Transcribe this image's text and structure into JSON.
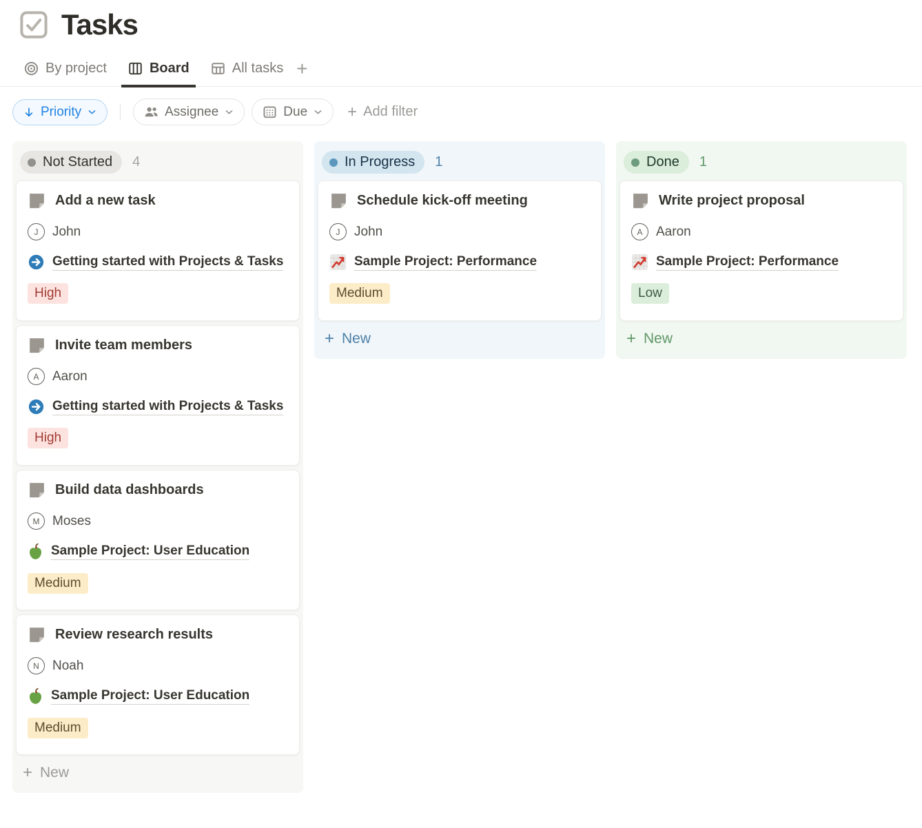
{
  "page": {
    "title": "Tasks",
    "title_icon": "checkbox-icon"
  },
  "tabs": [
    {
      "label": "By project",
      "icon": "target-icon",
      "active": false
    },
    {
      "label": "Board",
      "icon": "board-icon",
      "active": true
    },
    {
      "label": "All tasks",
      "icon": "table-icon",
      "active": false
    }
  ],
  "tabs_add_label": "+",
  "filter_bar": {
    "sort_button": {
      "label": "Priority",
      "icon": "arrow-down-icon",
      "accent": "#2383e2"
    },
    "assignee_button": {
      "label": "Assignee",
      "icon": "people-icon"
    },
    "due_button": {
      "label": "Due",
      "icon": "calendar-icon"
    },
    "add_filter": {
      "label": "Add filter",
      "plus": "+"
    }
  },
  "priority_colors": {
    "High": {
      "bg": "#fde3df",
      "text": "#a23c34"
    },
    "Medium": {
      "bg": "#fdecc8",
      "text": "#5d4c2c"
    },
    "Low": {
      "bg": "#dbeddb",
      "text": "#3e5a47"
    }
  },
  "board": {
    "columns": [
      {
        "id": "not-started",
        "label": "Not Started",
        "count": "4",
        "new_label": "New",
        "theme": {
          "bg": "#f7f7f5",
          "badge_bg": "#e7e6e3",
          "badge_text": "#32302c",
          "dot": "#91918e",
          "count": "#a5a4a1",
          "new": "#9b9a97"
        },
        "cards": [
          {
            "title": "Add a new task",
            "assignee": {
              "initial": "J",
              "name": "John"
            },
            "project": {
              "icon": "arrow-circle-icon",
              "label": "Getting started with Projects & Tasks"
            },
            "priority": "High"
          },
          {
            "title": "Invite team members",
            "assignee": {
              "initial": "A",
              "name": "Aaron"
            },
            "project": {
              "icon": "arrow-circle-icon",
              "label": "Getting started with Projects & Tasks"
            },
            "priority": "High"
          },
          {
            "title": "Build data dashboards",
            "assignee": {
              "initial": "M",
              "name": "Moses"
            },
            "project": {
              "icon": "apple-icon",
              "label": "Sample Project: User Education"
            },
            "priority": "Medium"
          },
          {
            "title": "Review research results",
            "assignee": {
              "initial": "N",
              "name": "Noah"
            },
            "project": {
              "icon": "apple-icon",
              "label": "Sample Project: User Education"
            },
            "priority": "Medium"
          }
        ]
      },
      {
        "id": "in-progress",
        "label": "In Progress",
        "count": "1",
        "new_label": "New",
        "theme": {
          "bg": "#f0f6fa",
          "badge_bg": "#d3e5ef",
          "badge_text": "#183347",
          "dot": "#5b97bd",
          "count": "#4e81a8",
          "new": "#4e81a8"
        },
        "cards": [
          {
            "title": "Schedule kick-off meeting",
            "assignee": {
              "initial": "J",
              "name": "John"
            },
            "project": {
              "icon": "chart-icon",
              "label": "Sample Project: Performance"
            },
            "priority": "Medium"
          }
        ]
      },
      {
        "id": "done",
        "label": "Done",
        "count": "1",
        "new_label": "New",
        "theme": {
          "bg": "#f1f7f1",
          "badge_bg": "#dbeddb",
          "badge_text": "#1c3829",
          "dot": "#6c9b7d",
          "count": "#5f9968",
          "new": "#5f9968"
        },
        "cards": [
          {
            "title": "Write project proposal",
            "assignee": {
              "initial": "A",
              "name": "Aaron"
            },
            "project": {
              "icon": "chart-icon",
              "label": "Sample Project: Performance"
            },
            "priority": "Low"
          }
        ]
      }
    ]
  }
}
